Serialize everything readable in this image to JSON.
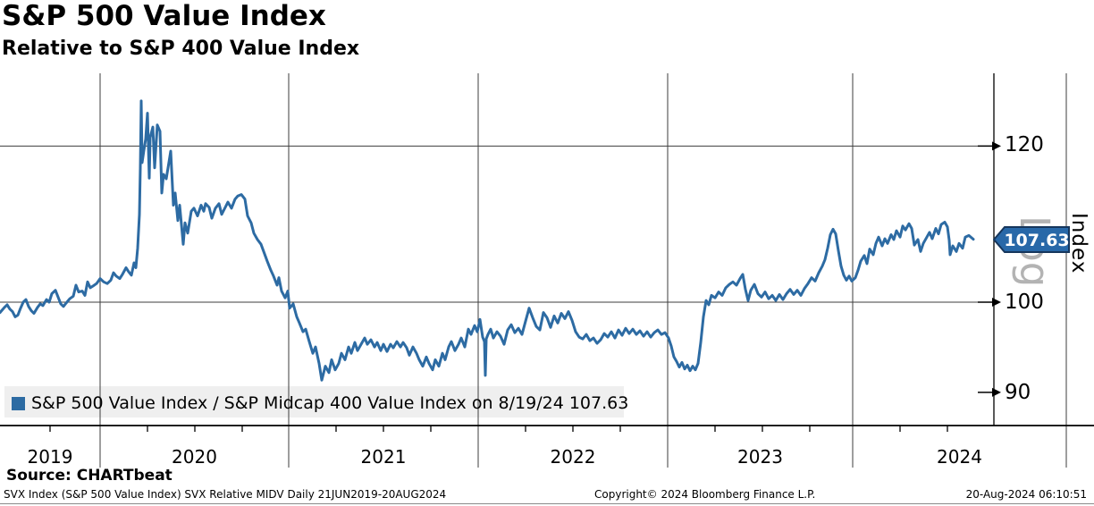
{
  "header": {
    "title": "S&P 500 Value Index",
    "subtitle": "Relative to S&P 400 Value Index"
  },
  "legend": {
    "label": "S&P 500 Value Index / S&P Midcap 400 Value Index on 8/19/24 107.63",
    "swatch_color": "#2d6ba3"
  },
  "footer": {
    "source": "Source: CHARTbeat",
    "meta": "SVX Index (S&P 500 Value Index) SVX Relative MIDV  Daily 21JUN2019-20AUG2024",
    "copyright": "Copyright© 2024 Bloomberg Finance L.P.",
    "timestamp": "20-Aug-2024 06:10:51"
  },
  "chart_data": {
    "type": "line",
    "title": "S&P 500 Value Index",
    "subtitle": "Relative to S&P 400 Value Index",
    "series_name": "S&P 500 Value Index / S&P Midcap 400 Value Index",
    "line_color": "#2d6ba3",
    "x_axis": {
      "start": "21JUN2019",
      "end": "20AUG2024",
      "frequency": "Daily",
      "tick_labels": [
        "2019",
        "2020",
        "2021",
        "2022",
        "2023",
        "2024"
      ]
    },
    "y_axis": {
      "label": "Index",
      "scale": "log",
      "scale_label": "Log",
      "tick_labels": [
        120,
        100,
        90
      ],
      "gridline_ticks": [
        120,
        100
      ],
      "visible_range": [
        87,
        130
      ]
    },
    "last_point": {
      "date": "8/19/24",
      "value": 107.63,
      "tag_label": "107.63",
      "tag_color": "#2868a8",
      "tag_border": "#16365c"
    },
    "points_x_note": "x = pixels from plot left edge; x=112 is 01JAN2020, 211.2 px per calendar year (series runs 21JUN2019 to 20AUG2024); value = relative index level, log scale",
    "points": [
      [
        0,
        98.8
      ],
      [
        5,
        99.4
      ],
      [
        8,
        99.7
      ],
      [
        11,
        99.2
      ],
      [
        14,
        98.9
      ],
      [
        17,
        98.3
      ],
      [
        20,
        98.5
      ],
      [
        23,
        99.3
      ],
      [
        26,
        100.0
      ],
      [
        29,
        100.3
      ],
      [
        32,
        99.5
      ],
      [
        35,
        99.0
      ],
      [
        38,
        98.7
      ],
      [
        42,
        99.4
      ],
      [
        45,
        99.8
      ],
      [
        48,
        99.6
      ],
      [
        52,
        100.3
      ],
      [
        55,
        100.0
      ],
      [
        58,
        101.0
      ],
      [
        62,
        101.4
      ],
      [
        65,
        100.6
      ],
      [
        68,
        99.8
      ],
      [
        71,
        99.5
      ],
      [
        74,
        99.9
      ],
      [
        78,
        100.4
      ],
      [
        82,
        100.7
      ],
      [
        85,
        102.0
      ],
      [
        88,
        101.2
      ],
      [
        92,
        101.3
      ],
      [
        95,
        100.8
      ],
      [
        98,
        102.4
      ],
      [
        101,
        101.7
      ],
      [
        104,
        101.9
      ],
      [
        108,
        102.2
      ],
      [
        112,
        102.8
      ],
      [
        116,
        102.4
      ],
      [
        120,
        102.2
      ],
      [
        124,
        102.6
      ],
      [
        127,
        103.5
      ],
      [
        130,
        103.1
      ],
      [
        134,
        102.8
      ],
      [
        137,
        103.3
      ],
      [
        141,
        104.1
      ],
      [
        144,
        103.6
      ],
      [
        147,
        103.2
      ],
      [
        150,
        104.7
      ],
      [
        152,
        104.1
      ],
      [
        154,
        106.5
      ],
      [
        156,
        110.8
      ],
      [
        157,
        117.0
      ],
      [
        158,
        126.5
      ],
      [
        159,
        117.7
      ],
      [
        161,
        119.4
      ],
      [
        163,
        121.0
      ],
      [
        165,
        124.7
      ],
      [
        167,
        115.6
      ],
      [
        168,
        121.2
      ],
      [
        171,
        122.7
      ],
      [
        173,
        117.0
      ],
      [
        176,
        123.0
      ],
      [
        179,
        122.1
      ],
      [
        181,
        113.6
      ],
      [
        183,
        116.1
      ],
      [
        186,
        115.5
      ],
      [
        188,
        117.0
      ],
      [
        191,
        119.3
      ],
      [
        194,
        112.0
      ],
      [
        196,
        113.6
      ],
      [
        199,
        110.0
      ],
      [
        201,
        112.0
      ],
      [
        203,
        109.5
      ],
      [
        205,
        107.0
      ],
      [
        207,
        109.7
      ],
      [
        210,
        108.4
      ],
      [
        214,
        111.2
      ],
      [
        217,
        111.6
      ],
      [
        221,
        110.6
      ],
      [
        225,
        112.0
      ],
      [
        228,
        111.2
      ],
      [
        230,
        112.2
      ],
      [
        234,
        111.7
      ],
      [
        237,
        110.3
      ],
      [
        241,
        111.6
      ],
      [
        245,
        112.2
      ],
      [
        248,
        110.8
      ],
      [
        252,
        111.7
      ],
      [
        255,
        112.4
      ],
      [
        259,
        111.6
      ],
      [
        263,
        112.8
      ],
      [
        266,
        113.2
      ],
      [
        270,
        113.4
      ],
      [
        274,
        112.8
      ],
      [
        277,
        110.6
      ],
      [
        281,
        109.7
      ],
      [
        284,
        108.4
      ],
      [
        288,
        107.6
      ],
      [
        292,
        107.0
      ],
      [
        295,
        106.1
      ],
      [
        299,
        104.9
      ],
      [
        303,
        103.8
      ],
      [
        306,
        103.1
      ],
      [
        310,
        102.0
      ],
      [
        312,
        102.9
      ],
      [
        315,
        101.3
      ],
      [
        319,
        100.5
      ],
      [
        322,
        101.3
      ],
      [
        324,
        99.3
      ],
      [
        328,
        99.8
      ],
      [
        332,
        98.3
      ],
      [
        335,
        97.6
      ],
      [
        339,
        96.6
      ],
      [
        342,
        96.9
      ],
      [
        346,
        95.5
      ],
      [
        350,
        94.2
      ],
      [
        353,
        94.9
      ],
      [
        357,
        93.1
      ],
      [
        360,
        91.3
      ],
      [
        364,
        92.8
      ],
      [
        368,
        92.1
      ],
      [
        371,
        93.5
      ],
      [
        375,
        92.4
      ],
      [
        379,
        93.1
      ],
      [
        382,
        94.2
      ],
      [
        386,
        93.5
      ],
      [
        390,
        94.9
      ],
      [
        393,
        94.2
      ],
      [
        397,
        95.4
      ],
      [
        400,
        94.5
      ],
      [
        404,
        95.2
      ],
      [
        408,
        95.9
      ],
      [
        411,
        95.2
      ],
      [
        415,
        95.7
      ],
      [
        419,
        94.9
      ],
      [
        422,
        95.4
      ],
      [
        426,
        94.5
      ],
      [
        429,
        95.2
      ],
      [
        433,
        94.4
      ],
      [
        437,
        95.2
      ],
      [
        440,
        94.8
      ],
      [
        444,
        95.5
      ],
      [
        448,
        94.9
      ],
      [
        451,
        95.4
      ],
      [
        455,
        94.8
      ],
      [
        458,
        94.0
      ],
      [
        462,
        94.9
      ],
      [
        466,
        94.2
      ],
      [
        469,
        93.5
      ],
      [
        473,
        92.8
      ],
      [
        477,
        93.8
      ],
      [
        480,
        93.1
      ],
      [
        484,
        92.4
      ],
      [
        487,
        93.5
      ],
      [
        491,
        92.8
      ],
      [
        495,
        94.2
      ],
      [
        498,
        93.5
      ],
      [
        502,
        94.9
      ],
      [
        505,
        95.5
      ],
      [
        509,
        94.5
      ],
      [
        513,
        95.2
      ],
      [
        516,
        95.9
      ],
      [
        520,
        94.9
      ],
      [
        524,
        96.9
      ],
      [
        527,
        96.3
      ],
      [
        531,
        97.3
      ],
      [
        534,
        96.6
      ],
      [
        537,
        98.0
      ],
      [
        540,
        96.0
      ],
      [
        542,
        95.5
      ],
      [
        543,
        91.8
      ],
      [
        544,
        95.8
      ],
      [
        546,
        96.3
      ],
      [
        549,
        96.9
      ],
      [
        552,
        95.9
      ],
      [
        556,
        96.6
      ],
      [
        560,
        96.1
      ],
      [
        564,
        95.2
      ],
      [
        568,
        96.8
      ],
      [
        572,
        97.4
      ],
      [
        576,
        96.5
      ],
      [
        580,
        97.0
      ],
      [
        584,
        96.3
      ],
      [
        588,
        97.8
      ],
      [
        592,
        99.3
      ],
      [
        596,
        98.2
      ],
      [
        600,
        97.2
      ],
      [
        604,
        96.8
      ],
      [
        608,
        98.8
      ],
      [
        612,
        98.2
      ],
      [
        616,
        97.1
      ],
      [
        620,
        98.4
      ],
      [
        624,
        97.6
      ],
      [
        628,
        98.7
      ],
      [
        632,
        98.1
      ],
      [
        636,
        98.9
      ],
      [
        640,
        97.9
      ],
      [
        644,
        96.6
      ],
      [
        648,
        96.0
      ],
      [
        652,
        95.8
      ],
      [
        656,
        96.3
      ],
      [
        660,
        95.6
      ],
      [
        664,
        95.9
      ],
      [
        668,
        95.3
      ],
      [
        672,
        95.7
      ],
      [
        676,
        96.4
      ],
      [
        680,
        96.0
      ],
      [
        684,
        96.6
      ],
      [
        688,
        95.9
      ],
      [
        692,
        96.8
      ],
      [
        696,
        96.2
      ],
      [
        700,
        97.0
      ],
      [
        704,
        96.4
      ],
      [
        708,
        96.9
      ],
      [
        712,
        96.3
      ],
      [
        716,
        96.7
      ],
      [
        720,
        96.1
      ],
      [
        724,
        96.6
      ],
      [
        728,
        96.0
      ],
      [
        732,
        96.5
      ],
      [
        736,
        96.8
      ],
      [
        740,
        96.3
      ],
      [
        744,
        96.5
      ],
      [
        748,
        95.9
      ],
      [
        751,
        95.0
      ],
      [
        754,
        93.8
      ],
      [
        757,
        93.3
      ],
      [
        760,
        92.7
      ],
      [
        763,
        93.2
      ],
      [
        766,
        92.5
      ],
      [
        769,
        92.9
      ],
      [
        772,
        92.3
      ],
      [
        775,
        92.8
      ],
      [
        778,
        92.4
      ],
      [
        781,
        93.1
      ],
      [
        784,
        95.4
      ],
      [
        787,
        98.3
      ],
      [
        790,
        100.2
      ],
      [
        793,
        99.7
      ],
      [
        796,
        100.8
      ],
      [
        800,
        100.5
      ],
      [
        804,
        101.2
      ],
      [
        808,
        100.8
      ],
      [
        812,
        101.7
      ],
      [
        816,
        102.1
      ],
      [
        820,
        102.4
      ],
      [
        824,
        102.0
      ],
      [
        828,
        102.8
      ],
      [
        831,
        103.3
      ],
      [
        834,
        101.5
      ],
      [
        837,
        100.2
      ],
      [
        840,
        101.4
      ],
      [
        844,
        102.1
      ],
      [
        848,
        101.0
      ],
      [
        852,
        100.6
      ],
      [
        856,
        101.2
      ],
      [
        860,
        100.4
      ],
      [
        864,
        100.8
      ],
      [
        868,
        100.2
      ],
      [
        872,
        100.9
      ],
      [
        876,
        100.3
      ],
      [
        880,
        101.0
      ],
      [
        884,
        101.5
      ],
      [
        888,
        100.9
      ],
      [
        892,
        101.4
      ],
      [
        896,
        100.8
      ],
      [
        900,
        101.6
      ],
      [
        904,
        102.2
      ],
      [
        908,
        102.9
      ],
      [
        912,
        102.5
      ],
      [
        916,
        103.5
      ],
      [
        920,
        104.3
      ],
      [
        923,
        105.1
      ],
      [
        926,
        106.5
      ],
      [
        929,
        108.2
      ],
      [
        932,
        108.9
      ],
      [
        935,
        108.3
      ],
      [
        938,
        106.2
      ],
      [
        941,
        104.3
      ],
      [
        944,
        103.2
      ],
      [
        947,
        102.6
      ],
      [
        950,
        103.1
      ],
      [
        953,
        102.5
      ],
      [
        957,
        102.9
      ],
      [
        960,
        103.8
      ],
      [
        963,
        104.9
      ],
      [
        967,
        105.6
      ],
      [
        970,
        104.6
      ],
      [
        973,
        106.4
      ],
      [
        977,
        105.7
      ],
      [
        980,
        107.1
      ],
      [
        983,
        107.9
      ],
      [
        987,
        106.8
      ],
      [
        990,
        107.7
      ],
      [
        993,
        107.1
      ],
      [
        997,
        108.2
      ],
      [
        1000,
        107.6
      ],
      [
        1003,
        108.7
      ],
      [
        1007,
        107.9
      ],
      [
        1010,
        109.3
      ],
      [
        1013,
        108.8
      ],
      [
        1017,
        109.6
      ],
      [
        1020,
        109.0
      ],
      [
        1023,
        106.9
      ],
      [
        1027,
        107.6
      ],
      [
        1030,
        106.1
      ],
      [
        1033,
        107.1
      ],
      [
        1037,
        107.9
      ],
      [
        1040,
        108.5
      ],
      [
        1043,
        107.7
      ],
      [
        1047,
        109.0
      ],
      [
        1050,
        108.3
      ],
      [
        1053,
        109.5
      ],
      [
        1057,
        109.8
      ],
      [
        1060,
        109.2
      ],
      [
        1062,
        107.5
      ],
      [
        1063,
        105.7
      ],
      [
        1066,
        106.8
      ],
      [
        1070,
        106.1
      ],
      [
        1073,
        107.1
      ],
      [
        1077,
        106.5
      ],
      [
        1080,
        107.9
      ],
      [
        1084,
        108.1
      ],
      [
        1089,
        107.63
      ]
    ]
  }
}
